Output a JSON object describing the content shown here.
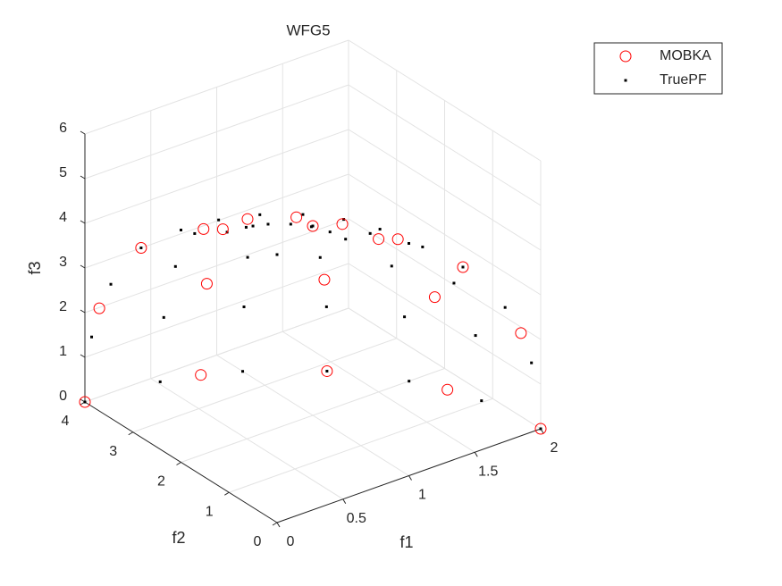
{
  "chart_data": {
    "type": "scatter3d",
    "title": "WFG5",
    "xlabel": "f1",
    "ylabel": "f2",
    "zlabel": "f3",
    "xlim": [
      0,
      2
    ],
    "ylim": [
      0,
      4
    ],
    "zlim": [
      0,
      6
    ],
    "xticks": [
      0,
      0.5,
      1,
      1.5,
      2
    ],
    "yticks": [
      0,
      1,
      2,
      3,
      4
    ],
    "zticks": [
      0,
      1,
      2,
      3,
      4,
      5,
      6
    ],
    "grid": true,
    "legend": "top-right",
    "series": [
      {
        "name": "MOBKA",
        "color": "#ff0000",
        "marker": "circle",
        "x": [
          0.77,
          0.71,
          0.54,
          0.29,
          0,
          1.41,
          1.31,
          1.0,
          0.54,
          0,
          1.85,
          1.71,
          1.31,
          0.71,
          0,
          2,
          1.85,
          1.41,
          0.77,
          0
        ],
        "y": [
          0,
          0.59,
          1.08,
          1.41,
          1.53,
          0,
          1.08,
          2.0,
          2.61,
          2.83,
          0,
          1.41,
          2.61,
          3.41,
          3.7,
          0,
          1.53,
          2.83,
          3.7,
          4
        ],
        "z": [
          5.54,
          5.54,
          5.54,
          5.54,
          5.54,
          4.24,
          4.24,
          4.24,
          4.24,
          4.24,
          2.3,
          2.3,
          2.3,
          2.3,
          2.3,
          0,
          0,
          0,
          0,
          0
        ]
      },
      {
        "name": "TruePF",
        "color": "#000000",
        "marker": "dot",
        "x": [
          0.52,
          0.5,
          0.45,
          0.37,
          0.26,
          0.13,
          0,
          1,
          0.97,
          0.87,
          0.71,
          0.5,
          0.26,
          0,
          1.41,
          1.37,
          1.22,
          1,
          0.71,
          0.37,
          0,
          1.73,
          1.67,
          1.5,
          1.22,
          0.87,
          0.45,
          0,
          1.93,
          1.87,
          1.67,
          1.37,
          0.97,
          0.5,
          0,
          2,
          1.93,
          1.73,
          1.41,
          1,
          0.52,
          0,
          0
        ],
        "y": [
          0,
          0.27,
          0.52,
          0.73,
          0.9,
          1,
          1.04,
          0,
          0.52,
          1,
          1.41,
          1.73,
          1.93,
          2,
          0,
          0.73,
          1.41,
          2,
          2.45,
          2.73,
          2.83,
          0,
          0.9,
          1.73,
          2.45,
          3,
          3.35,
          3.46,
          0,
          1,
          1.93,
          2.73,
          3.35,
          3.73,
          3.86,
          0,
          1.04,
          2,
          2.83,
          3.46,
          3.86,
          4,
          0
        ],
        "z": [
          5.8,
          5.8,
          5.8,
          5.8,
          5.8,
          5.8,
          5.8,
          5.2,
          5.2,
          5.2,
          5.2,
          5.2,
          5.2,
          5.2,
          4.24,
          4.24,
          4.24,
          4.24,
          4.24,
          4.24,
          4.24,
          3,
          3,
          3,
          3,
          3,
          3,
          3,
          1.55,
          1.55,
          1.55,
          1.55,
          1.55,
          1.55,
          1.55,
          0,
          0,
          0,
          0,
          0,
          0,
          0,
          6
        ]
      }
    ]
  }
}
